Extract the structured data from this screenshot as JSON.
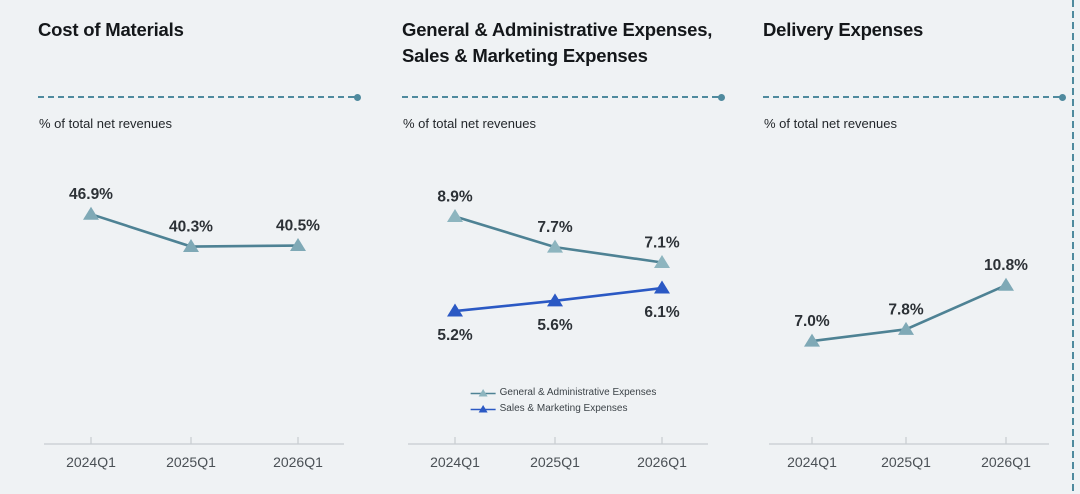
{
  "page": {
    "background_color": "#eff2f4",
    "divider_color": "#4f8a9e"
  },
  "style": {
    "teal_line": "#4e8294",
    "teal_marker": "#7fa9b6",
    "blue_line": "#2b59c4",
    "blue_marker": "#2b59c4",
    "axis_line": "#c7ccd0",
    "axis_label_color": "#4a5055",
    "value_label_color": "#2c3136"
  },
  "chart_data": [
    {
      "type": "line",
      "title": "Cost of Materials",
      "subtitle": "% of total net revenues",
      "categories": [
        "2024Q1",
        "2025Q1",
        "2026Q1"
      ],
      "series": [
        {
          "name": "Cost of Materials",
          "values": [
            46.9,
            40.3,
            40.5
          ],
          "color": "#4e8294",
          "marker_color": "#7fa9b6",
          "marker": "triangle",
          "label_position": "above"
        }
      ],
      "ylim": [
        0,
        60
      ],
      "unit": "%",
      "grid": false,
      "legend": false
    },
    {
      "type": "line",
      "title": "General & Administrative Expenses,\nSales & Marketing Expenses",
      "subtitle": "% of total net revenues",
      "categories": [
        "2024Q1",
        "2025Q1",
        "2026Q1"
      ],
      "series": [
        {
          "name": "General & Administrative Expenses",
          "values": [
            8.9,
            7.7,
            7.1
          ],
          "color": "#4e8294",
          "marker_color": "#8db5bf",
          "marker": "triangle",
          "label_position": "above"
        },
        {
          "name": "Sales & Marketing Expenses",
          "values": [
            5.2,
            5.6,
            6.1
          ],
          "color": "#2b59c4",
          "marker_color": "#2b59c4",
          "marker": "triangle",
          "label_position": "below"
        }
      ],
      "ylim": [
        0,
        11.5
      ],
      "unit": "%",
      "grid": false,
      "legend": true,
      "legend_position": "bottom-center"
    },
    {
      "type": "line",
      "title": "Delivery Expenses",
      "subtitle": "% of total net revenues",
      "categories": [
        "2024Q1",
        "2025Q1",
        "2026Q1"
      ],
      "series": [
        {
          "name": "Delivery Expenses",
          "values": [
            7.0,
            7.8,
            10.8
          ],
          "color": "#4e8294",
          "marker_color": "#7fa9b6",
          "marker": "triangle",
          "label_position": "above"
        }
      ],
      "ylim": [
        0,
        20
      ],
      "unit": "%",
      "grid": false,
      "legend": false
    }
  ]
}
